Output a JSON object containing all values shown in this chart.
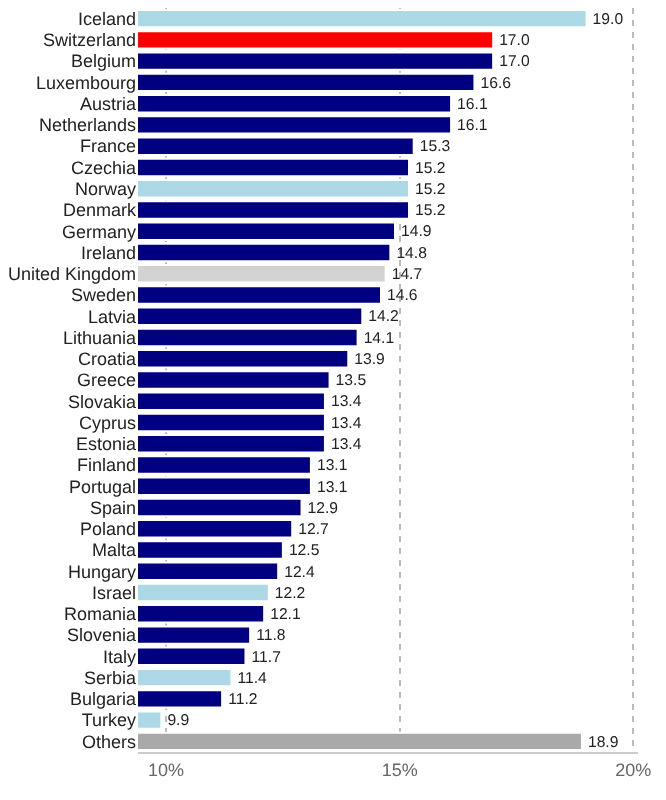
{
  "chart_data": {
    "type": "bar",
    "orientation": "horizontal",
    "categories": [
      "Iceland",
      "Switzerland",
      "Belgium",
      "Luxembourg",
      "Austria",
      "Netherlands",
      "France",
      "Czechia",
      "Norway",
      "Denmark",
      "Germany",
      "Ireland",
      "United Kingdom",
      "Sweden",
      "Latvia",
      "Lithuania",
      "Croatia",
      "Greece",
      "Slovakia",
      "Cyprus",
      "Estonia",
      "Finland",
      "Portugal",
      "Spain",
      "Poland",
      "Malta",
      "Hungary",
      "Israel",
      "Romania",
      "Slovenia",
      "Italy",
      "Serbia",
      "Bulgaria",
      "Turkey",
      "Others"
    ],
    "values": [
      19.0,
      17.0,
      17.0,
      16.6,
      16.1,
      16.1,
      15.3,
      15.2,
      15.2,
      15.2,
      14.9,
      14.8,
      14.7,
      14.6,
      14.2,
      14.1,
      13.9,
      13.5,
      13.4,
      13.4,
      13.4,
      13.1,
      13.1,
      12.9,
      12.7,
      12.5,
      12.4,
      12.2,
      12.1,
      11.8,
      11.7,
      11.4,
      11.2,
      9.9,
      18.9
    ],
    "value_labels": [
      "19.0",
      "17.0",
      "17.0",
      "16.6",
      "16.1",
      "16.1",
      "15.3",
      "15.2",
      "15.2",
      "15.2",
      "14.9",
      "14.8",
      "14.7",
      "14.6",
      "14.2",
      "14.1",
      "13.9",
      "13.5",
      "13.4",
      "13.4",
      "13.4",
      "13.1",
      "13.1",
      "12.9",
      "12.7",
      "12.5",
      "12.4",
      "12.2",
      "12.1",
      "11.8",
      "11.7",
      "11.4",
      "11.2",
      "9.9",
      "18.9"
    ],
    "colors": [
      "#add8e6",
      "#ff0000",
      "#000080",
      "#000080",
      "#000080",
      "#000080",
      "#000080",
      "#000080",
      "#add8e6",
      "#000080",
      "#000080",
      "#000080",
      "#d3d3d3",
      "#000080",
      "#000080",
      "#000080",
      "#000080",
      "#000080",
      "#000080",
      "#000080",
      "#000080",
      "#000080",
      "#000080",
      "#000080",
      "#000080",
      "#000080",
      "#000080",
      "#add8e6",
      "#000080",
      "#000080",
      "#000080",
      "#add8e6",
      "#000080",
      "#add8e6",
      "#a9a9a9"
    ],
    "xlim": [
      9.4,
      20.1
    ],
    "xticks": [
      {
        "value": 10,
        "label": "10%"
      },
      {
        "value": 15,
        "label": "15%"
      },
      {
        "value": 20,
        "label": "20%"
      }
    ],
    "grid": "x",
    "legend": false
  }
}
